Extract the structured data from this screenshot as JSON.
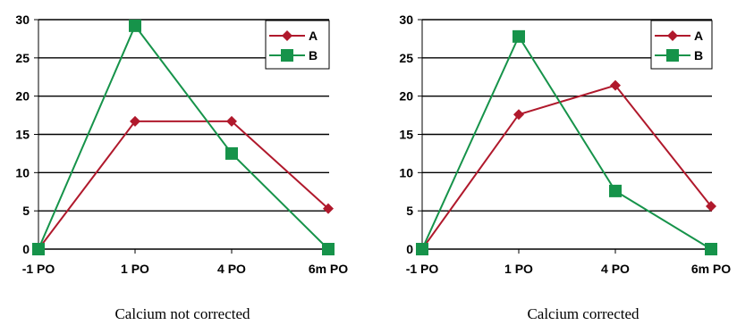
{
  "chart_data": [
    {
      "type": "line",
      "categories": [
        "-1 PO",
        "1 PO",
        "4 PO",
        "6m PO"
      ],
      "series": [
        {
          "name": "A",
          "color": "#B0192C",
          "marker": "diamond",
          "values": [
            0,
            16.7,
            16.7,
            5.3
          ]
        },
        {
          "name": "B",
          "color": "#16934A",
          "marker": "square",
          "values": [
            0,
            29.2,
            12.5,
            0
          ]
        }
      ],
      "yticks": [
        0,
        5,
        10,
        15,
        20,
        25,
        30
      ],
      "ylim": [
        0,
        30
      ],
      "grid": "horizontal",
      "legend": "top-right",
      "caption": "Calcium not corrected"
    },
    {
      "type": "line",
      "categories": [
        "-1 PO",
        "1 PO",
        "4 PO",
        "6m PO"
      ],
      "series": [
        {
          "name": "A",
          "color": "#B0192C",
          "marker": "diamond",
          "values": [
            0,
            17.6,
            21.4,
            5.6
          ]
        },
        {
          "name": "B",
          "color": "#16934A",
          "marker": "square",
          "values": [
            0,
            27.8,
            7.6,
            0
          ]
        }
      ],
      "yticks": [
        0,
        5,
        10,
        15,
        20,
        25,
        30
      ],
      "ylim": [
        0,
        30
      ],
      "grid": "horizontal",
      "legend": "top-right",
      "caption": "Calcium corrected"
    }
  ]
}
